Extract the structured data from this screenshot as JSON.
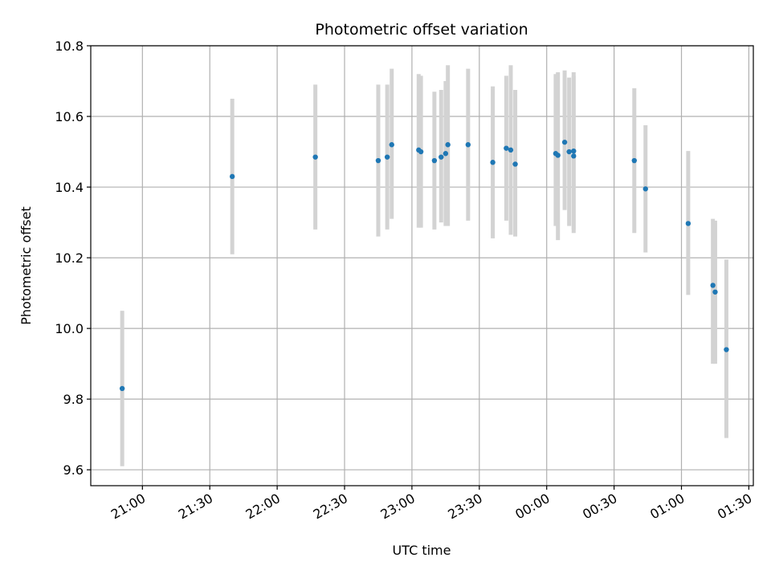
{
  "chart_data": {
    "type": "scatter",
    "title": "Photometric offset variation",
    "xlabel": "UTC time",
    "ylabel": "Photometric offset",
    "x_unit": "UTC HH:MM (times after 24:00 are the following day)",
    "xlim": [
      "20:37",
      "25:32"
    ],
    "ylim": [
      9.555,
      10.8
    ],
    "x_ticks": [
      "21:00",
      "21:30",
      "22:00",
      "22:30",
      "23:00",
      "23:30",
      "00:00",
      "00:30",
      "01:00",
      "01:30"
    ],
    "y_ticks": [
      "9.6",
      "9.8",
      "10.0",
      "10.2",
      "10.4",
      "10.6",
      "10.8"
    ],
    "grid": true,
    "colors": {
      "point": "#1f77b4",
      "errorbar": "#d3d3d3",
      "grid": "#b0b0b0"
    },
    "points": [
      {
        "t": "20:51",
        "y": 9.83,
        "low": 9.61,
        "high": 10.05
      },
      {
        "t": "21:40",
        "y": 10.43,
        "low": 10.21,
        "high": 10.65
      },
      {
        "t": "22:17",
        "y": 10.485,
        "low": 10.28,
        "high": 10.69
      },
      {
        "t": "22:45",
        "y": 10.475,
        "low": 10.26,
        "high": 10.69
      },
      {
        "t": "22:49",
        "y": 10.485,
        "low": 10.28,
        "high": 10.69
      },
      {
        "t": "22:51",
        "y": 10.52,
        "low": 10.31,
        "high": 10.735
      },
      {
        "t": "23:03",
        "y": 10.505,
        "low": 10.285,
        "high": 10.72
      },
      {
        "t": "23:04",
        "y": 10.5,
        "low": 10.285,
        "high": 10.715
      },
      {
        "t": "23:10",
        "y": 10.475,
        "low": 10.28,
        "high": 10.67
      },
      {
        "t": "23:13",
        "y": 10.485,
        "low": 10.3,
        "high": 10.675
      },
      {
        "t": "23:15",
        "y": 10.495,
        "low": 10.29,
        "high": 10.7
      },
      {
        "t": "23:16",
        "y": 10.52,
        "low": 10.29,
        "high": 10.745
      },
      {
        "t": "23:25",
        "y": 10.52,
        "low": 10.305,
        "high": 10.735
      },
      {
        "t": "23:36",
        "y": 10.47,
        "low": 10.255,
        "high": 10.685
      },
      {
        "t": "23:42",
        "y": 10.51,
        "low": 10.305,
        "high": 10.715
      },
      {
        "t": "23:44",
        "y": 10.505,
        "low": 10.265,
        "high": 10.745
      },
      {
        "t": "23:46",
        "y": 10.465,
        "low": 10.26,
        "high": 10.675
      },
      {
        "t": "24:04",
        "y": 10.495,
        "low": 10.29,
        "high": 10.72
      },
      {
        "t": "24:05",
        "y": 10.49,
        "low": 10.25,
        "high": 10.725
      },
      {
        "t": "24:08",
        "y": 10.527,
        "low": 10.335,
        "high": 10.73
      },
      {
        "t": "24:10",
        "y": 10.5,
        "low": 10.29,
        "high": 10.71
      },
      {
        "t": "24:12",
        "y": 10.488,
        "low": 10.27,
        "high": 10.715
      },
      {
        "t": "24:12",
        "y": 10.502,
        "low": 10.28,
        "high": 10.725
      },
      {
        "t": "24:39",
        "y": 10.475,
        "low": 10.27,
        "high": 10.68
      },
      {
        "t": "24:44",
        "y": 10.395,
        "low": 10.215,
        "high": 10.575
      },
      {
        "t": "25:03",
        "y": 10.297,
        "low": 10.095,
        "high": 10.502
      },
      {
        "t": "25:14",
        "y": 10.122,
        "low": 9.9,
        "high": 10.31
      },
      {
        "t": "25:15",
        "y": 10.103,
        "low": 9.9,
        "high": 10.305
      },
      {
        "t": "25:20",
        "y": 9.94,
        "low": 9.69,
        "high": 10.195
      }
    ]
  }
}
